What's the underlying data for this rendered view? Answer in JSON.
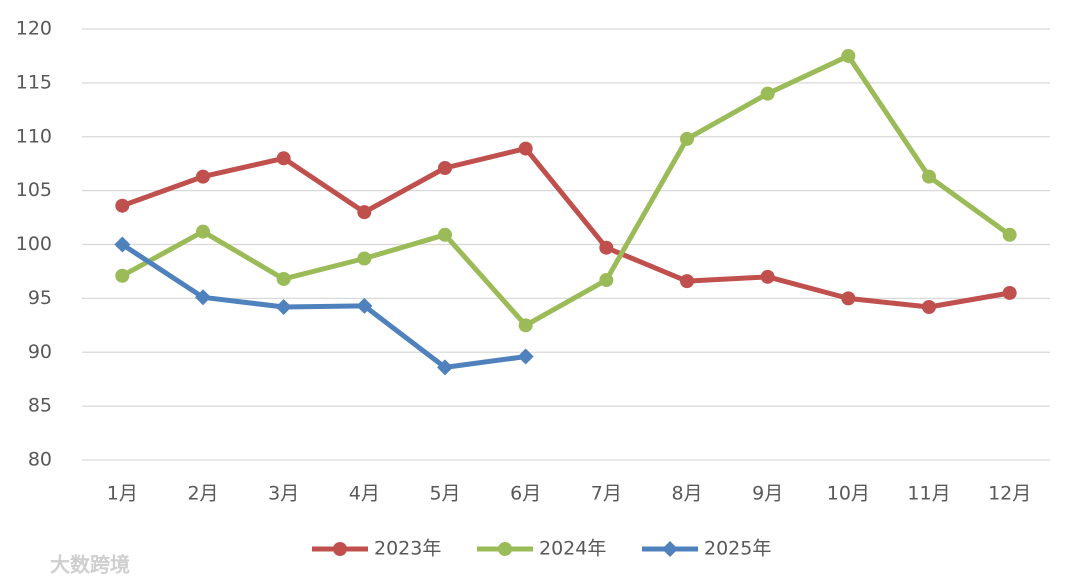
{
  "chart_data": {
    "type": "line",
    "categories": [
      "1月",
      "2月",
      "3月",
      "4月",
      "5月",
      "6月",
      "7月",
      "8月",
      "9月",
      "10月",
      "11月",
      "12月"
    ],
    "series": [
      {
        "name": "2023年",
        "color": "#c0504d",
        "marker": "circle",
        "values": [
          103.6,
          106.3,
          108.0,
          103.0,
          107.1,
          108.9,
          99.7,
          96.6,
          97.0,
          95.0,
          94.2,
          95.5
        ]
      },
      {
        "name": "2024年",
        "color": "#9bbb59",
        "marker": "circle",
        "values": [
          97.1,
          101.2,
          96.8,
          98.7,
          100.9,
          92.5,
          96.7,
          109.8,
          114.0,
          117.5,
          106.3,
          100.9
        ]
      },
      {
        "name": "2025年",
        "color": "#4f81bd",
        "marker": "diamond",
        "values": [
          100.0,
          95.1,
          94.2,
          94.3,
          88.6,
          89.6,
          null,
          null,
          null,
          null,
          null,
          null
        ]
      }
    ],
    "ylim": [
      80,
      120
    ],
    "yticks": [
      80,
      85,
      90,
      95,
      100,
      105,
      110,
      115,
      120
    ],
    "grid": true,
    "legend": "bottom"
  },
  "watermark": "大数跨境"
}
